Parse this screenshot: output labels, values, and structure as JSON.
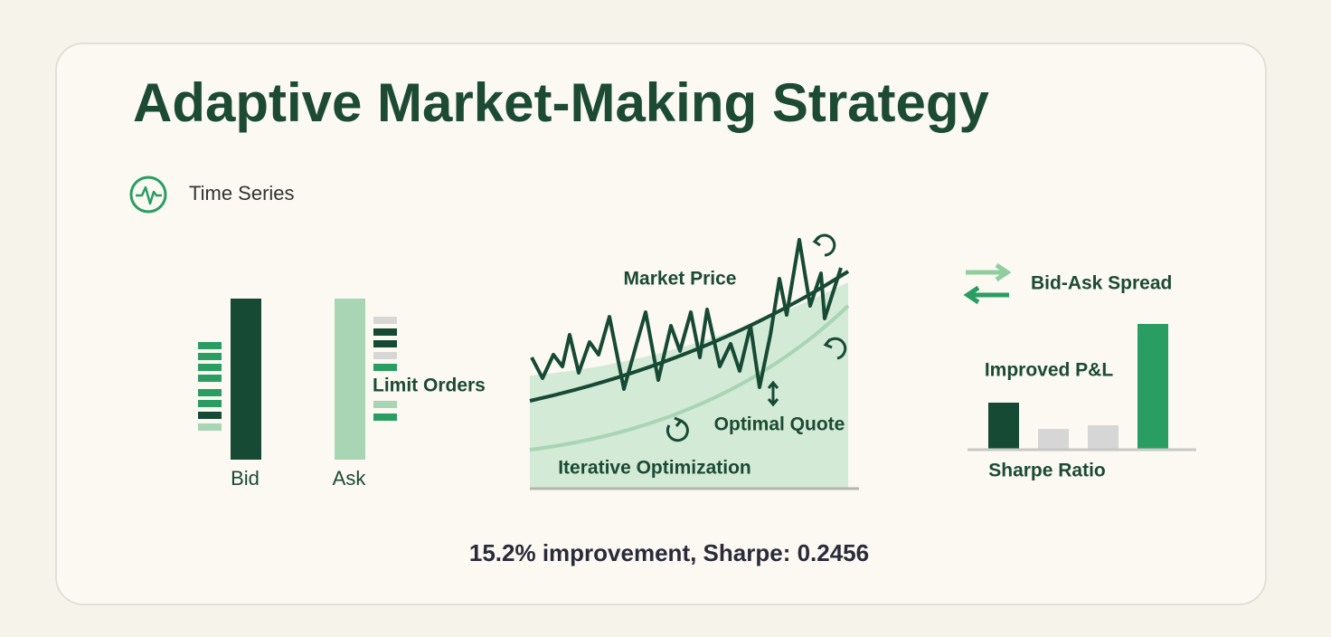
{
  "header": {
    "title": "Adaptive Market-Making Strategy",
    "tag": "Time Series"
  },
  "order_book": {
    "bid_label": "Bid",
    "ask_label": "Ask",
    "orders_label": "Limit Orders"
  },
  "optimization": {
    "price_label": "Market Price",
    "quote_label": "Optimal Quote",
    "process_label": "Iterative Optimization"
  },
  "results": {
    "spread_label": "Bid-Ask Spread",
    "pnl_label": "Improved P&L",
    "sharpe_label": "Sharpe Ratio"
  },
  "footer": {
    "summary": "15.2% improvement, Sharpe: 0.2456"
  }
}
